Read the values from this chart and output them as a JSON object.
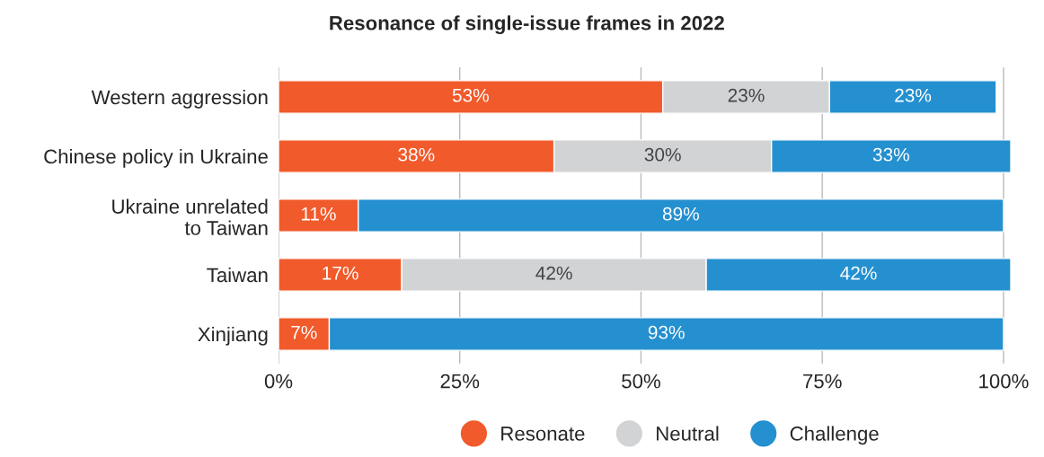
{
  "chart_data": {
    "type": "bar",
    "orientation": "horizontal",
    "stacked": true,
    "title": "Resonance of single-issue frames in 2022",
    "categories": [
      "Western aggression",
      "Chinese policy in Ukraine",
      "Ukraine unrelated\nto Taiwan",
      "Taiwan",
      "Xinjiang"
    ],
    "series": [
      {
        "name": "Resonate",
        "color": "#f15a2b",
        "values": [
          53,
          38,
          11,
          17,
          7
        ],
        "value_labels": [
          "53%",
          "38%",
          "11%",
          "17%",
          "7%"
        ]
      },
      {
        "name": "Neutral",
        "color": "#d1d3d4",
        "values": [
          23,
          30,
          null,
          42,
          null
        ],
        "value_labels": [
          "23%",
          "30%",
          null,
          "42%",
          null
        ]
      },
      {
        "name": "Challenge",
        "color": "#2490d0",
        "values": [
          23,
          33,
          89,
          42,
          93
        ],
        "value_labels": [
          "23%",
          "33%",
          "89%",
          "42%",
          "93%"
        ]
      }
    ],
    "xlim": [
      0,
      101
    ],
    "xticks": [
      {
        "value": 0,
        "label": "0%"
      },
      {
        "value": 25,
        "label": "25%"
      },
      {
        "value": 50,
        "label": "50%"
      },
      {
        "value": 75,
        "label": "75%"
      },
      {
        "value": 100,
        "label": "100%"
      }
    ],
    "grid": "x",
    "legend": "bottom",
    "marker": "circle"
  }
}
